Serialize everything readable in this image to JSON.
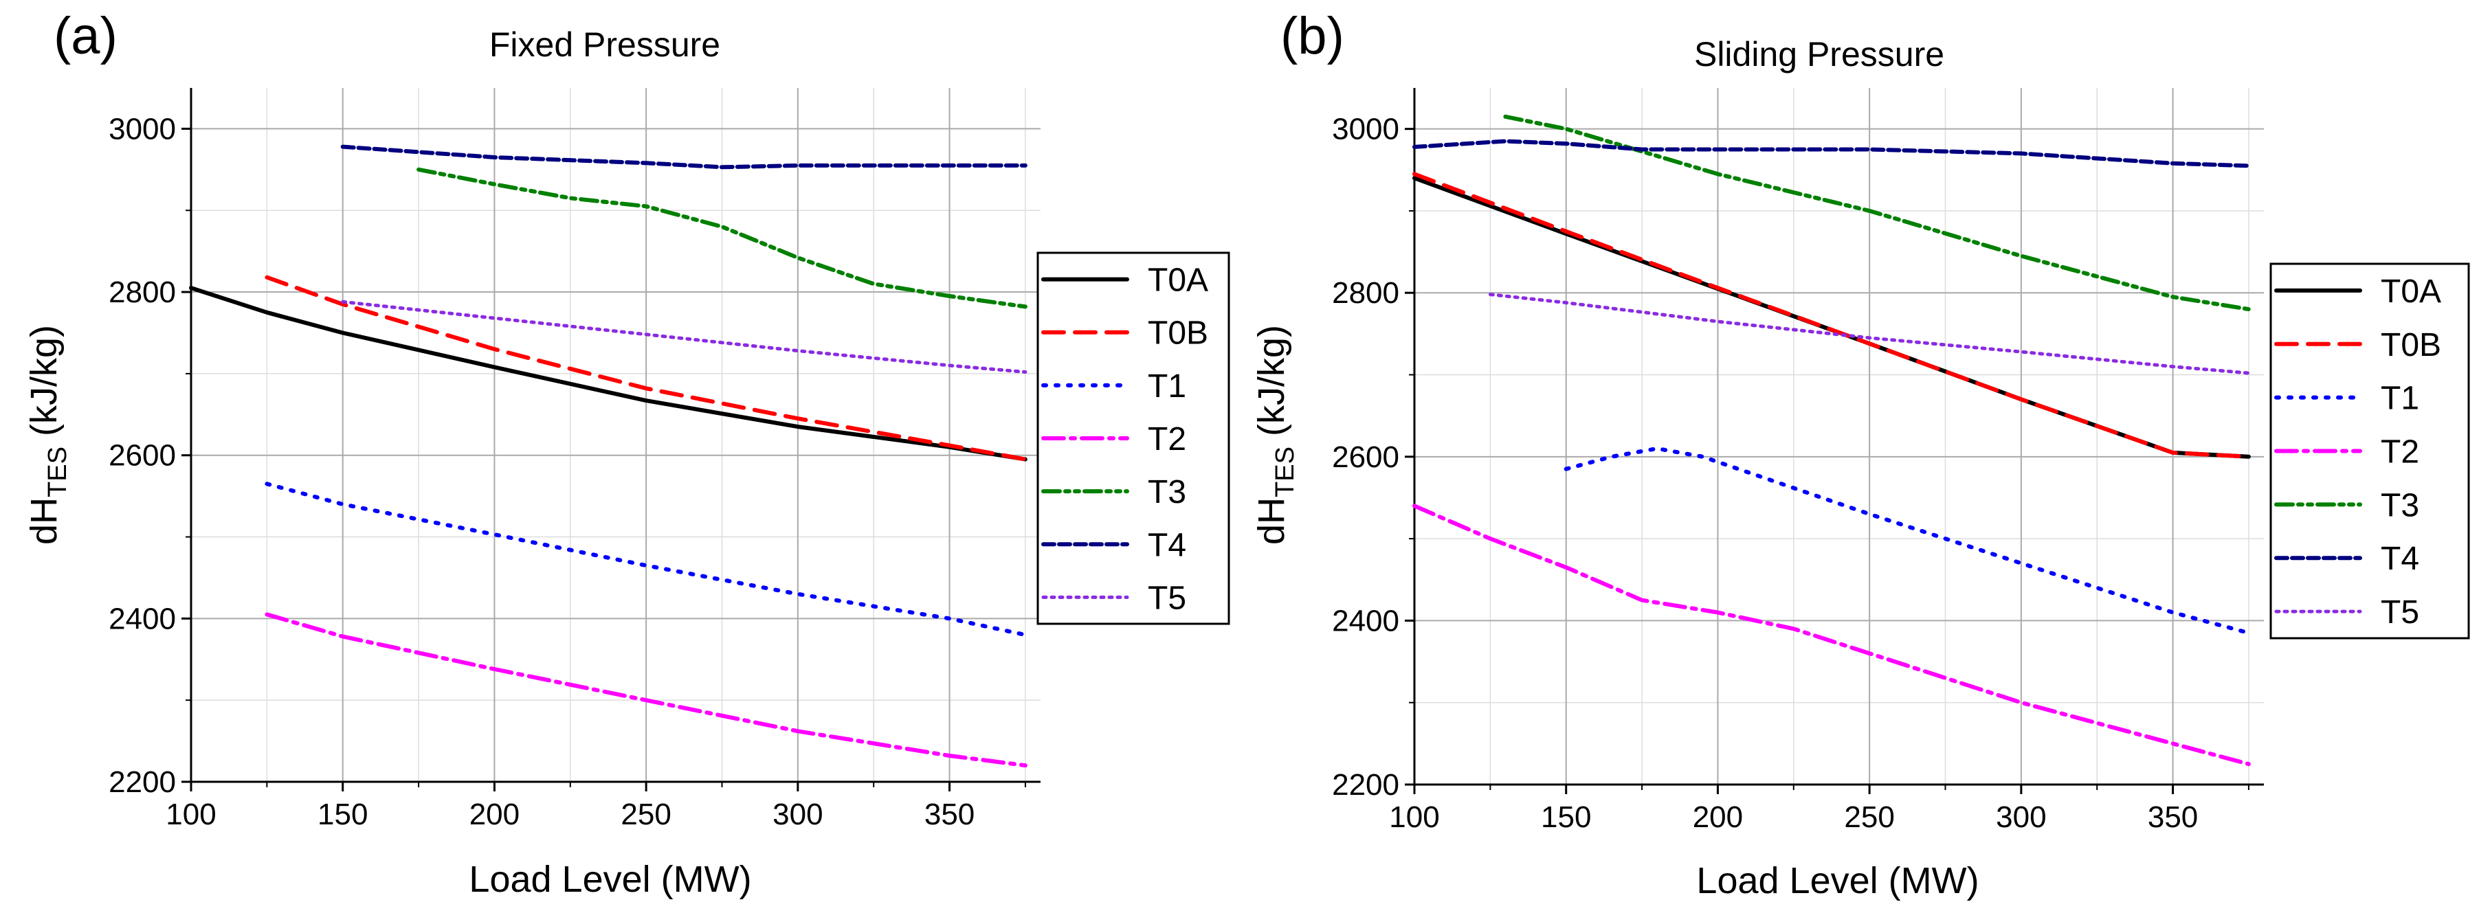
{
  "colors": {
    "T0A": "#000000",
    "T0B": "#ff0000",
    "T1": "#0000ff",
    "T2": "#ff00ff",
    "T3": "#008000",
    "T4": "#000080",
    "T5": "#8a2be2"
  },
  "chart_data": [
    {
      "type": "line",
      "panel_letter": "(a)",
      "title": "Fixed Pressure",
      "xlabel": "Load Level (MW)",
      "ylabel_main": "dH",
      "ylabel_sub": "TES",
      "ylabel_units": " (kJ/kg)",
      "xlim": [
        100,
        380
      ],
      "ylim": [
        2200,
        3050
      ],
      "xticks": [
        100,
        150,
        200,
        250,
        300,
        350
      ],
      "yticks": [
        2200,
        2400,
        2600,
        2800,
        3000
      ],
      "grid": true,
      "legend_position": "right",
      "series": [
        {
          "name": "T0A",
          "style": "solid",
          "x": [
            100,
            125,
            150,
            200,
            250,
            300,
            350,
            375
          ],
          "y": [
            2805,
            2775,
            2750,
            2708,
            2667,
            2635,
            2610,
            2595
          ]
        },
        {
          "name": "T0B",
          "style": "dash",
          "x": [
            125,
            150,
            200,
            250,
            300,
            350,
            375
          ],
          "y": [
            2818,
            2785,
            2730,
            2682,
            2645,
            2612,
            2595
          ]
        },
        {
          "name": "T1",
          "style": "dot",
          "x": [
            125,
            150,
            200,
            250,
            300,
            350,
            375
          ],
          "y": [
            2565,
            2540,
            2503,
            2465,
            2430,
            2400,
            2380
          ]
        },
        {
          "name": "T2",
          "style": "dashdot",
          "x": [
            125,
            150,
            200,
            250,
            300,
            350,
            375
          ],
          "y": [
            2405,
            2378,
            2338,
            2300,
            2262,
            2232,
            2220
          ]
        },
        {
          "name": "T3",
          "style": "dashdotdot",
          "x": [
            175,
            200,
            225,
            250,
            275,
            300,
            325,
            350,
            375
          ],
          "y": [
            2950,
            2932,
            2915,
            2905,
            2880,
            2842,
            2810,
            2795,
            2782
          ]
        },
        {
          "name": "T4",
          "style": "shortdash",
          "x": [
            150,
            200,
            250,
            275,
            300,
            350,
            375
          ],
          "y": [
            2978,
            2965,
            2958,
            2953,
            2955,
            2955,
            2955
          ]
        },
        {
          "name": "T5",
          "style": "shortdot",
          "x": [
            150,
            200,
            250,
            300,
            350,
            375
          ],
          "y": [
            2788,
            2768,
            2748,
            2728,
            2710,
            2702
          ]
        }
      ]
    },
    {
      "type": "line",
      "panel_letter": "(b)",
      "title": "Sliding Pressure",
      "xlabel": "Load Level (MW)",
      "ylabel_main": "dH",
      "ylabel_sub": "TES",
      "ylabel_units": " (kJ/kg)",
      "xlim": [
        100,
        380
      ],
      "ylim": [
        2200,
        3050
      ],
      "xticks": [
        100,
        150,
        200,
        250,
        300,
        350
      ],
      "yticks": [
        2200,
        2400,
        2600,
        2800,
        3000
      ],
      "grid": true,
      "legend_position": "right",
      "series": [
        {
          "name": "T0A",
          "style": "solid",
          "x": [
            100,
            150,
            200,
            250,
            300,
            350,
            375
          ],
          "y": [
            2940,
            2872,
            2805,
            2738,
            2670,
            2605,
            2600
          ]
        },
        {
          "name": "T0B",
          "style": "dash",
          "x": [
            100,
            150,
            200,
            250,
            300,
            350,
            375
          ],
          "y": [
            2945,
            2875,
            2806,
            2738,
            2670,
            2605,
            2600
          ]
        },
        {
          "name": "T1",
          "style": "dot",
          "x": [
            150,
            165,
            180,
            195,
            250,
            300,
            350,
            375
          ],
          "y": [
            2585,
            2600,
            2610,
            2600,
            2530,
            2470,
            2410,
            2385
          ]
        },
        {
          "name": "T2",
          "style": "dashdot",
          "x": [
            100,
            125,
            150,
            175,
            200,
            225,
            250,
            300,
            350,
            375
          ],
          "y": [
            2540,
            2500,
            2465,
            2425,
            2410,
            2390,
            2360,
            2300,
            2250,
            2225
          ]
        },
        {
          "name": "T3",
          "style": "dashdotdot",
          "x": [
            130,
            150,
            200,
            250,
            300,
            350,
            375
          ],
          "y": [
            3015,
            3000,
            2945,
            2900,
            2845,
            2795,
            2780
          ]
        },
        {
          "name": "T4",
          "style": "shortdash",
          "x": [
            100,
            130,
            150,
            175,
            200,
            250,
            300,
            350,
            375
          ],
          "y": [
            2978,
            2985,
            2982,
            2975,
            2975,
            2975,
            2970,
            2958,
            2955
          ]
        },
        {
          "name": "T5",
          "style": "shortdot",
          "x": [
            125,
            150,
            200,
            250,
            300,
            350,
            375
          ],
          "y": [
            2798,
            2788,
            2765,
            2745,
            2728,
            2710,
            2702
          ]
        }
      ]
    }
  ]
}
